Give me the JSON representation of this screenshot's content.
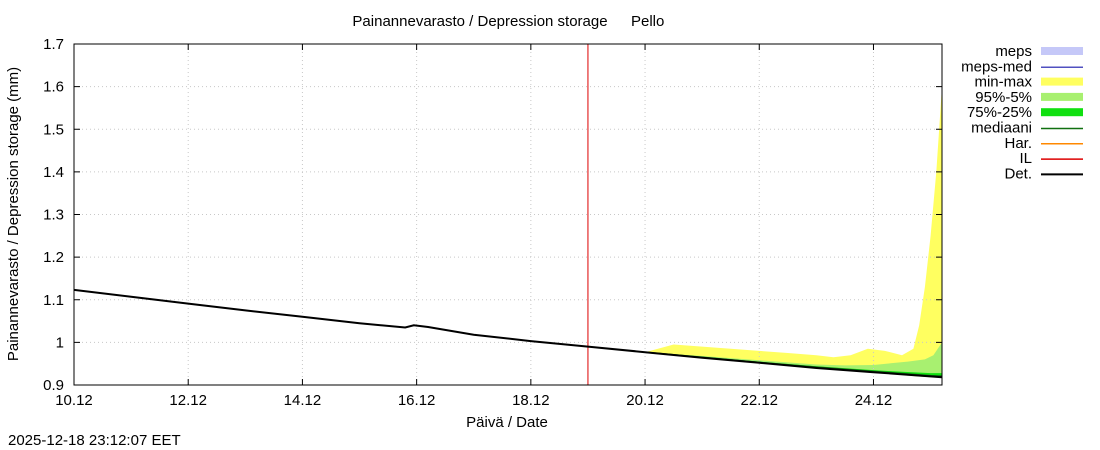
{
  "timestamp": "2025-12-18 23:12:07 EET",
  "chart_data": {
    "type": "line",
    "title": "Painannevarasto / Depression storage",
    "location": "Pello",
    "xlabel": "Päivä / Date",
    "ylabel": "Painannevarasto / Depression storage (mm)",
    "xlim": [
      10,
      25.2
    ],
    "ylim": [
      0.9,
      1.7
    ],
    "x_ticks": [
      {
        "x": 10,
        "label": "10.12"
      },
      {
        "x": 12,
        "label": "12.12"
      },
      {
        "x": 14,
        "label": "14.12"
      },
      {
        "x": 16,
        "label": "16.12"
      },
      {
        "x": 18,
        "label": "18.12"
      },
      {
        "x": 20,
        "label": "20.12"
      },
      {
        "x": 22,
        "label": "22.12"
      },
      {
        "x": 24,
        "label": "24.12"
      }
    ],
    "y_ticks": [
      {
        "y": 0.9,
        "label": "0.9"
      },
      {
        "y": 1.0,
        "label": "1"
      },
      {
        "y": 1.1,
        "label": "1.1"
      },
      {
        "y": 1.2,
        "label": "1.2"
      },
      {
        "y": 1.3,
        "label": "1.3"
      },
      {
        "y": 1.4,
        "label": "1.4"
      },
      {
        "y": 1.5,
        "label": "1.5"
      },
      {
        "y": 1.6,
        "label": "1.6"
      },
      {
        "y": 1.7,
        "label": "1.7"
      }
    ],
    "legend": [
      {
        "label": "meps",
        "color": "#c5c8f8",
        "kind": "band"
      },
      {
        "label": "meps-med",
        "color": "#5050c0",
        "kind": "line"
      },
      {
        "label": "min-max",
        "color": "#ffff60",
        "kind": "band"
      },
      {
        "label": "95%-5%",
        "color": "#a8f070",
        "kind": "band"
      },
      {
        "label": "75%-25%",
        "color": "#10e010",
        "kind": "band"
      },
      {
        "label": "mediaani",
        "color": "#107010",
        "kind": "line"
      },
      {
        "label": "Har.",
        "color": "#ff8800",
        "kind": "line"
      },
      {
        "label": "IL",
        "color": "#dd0000",
        "kind": "line"
      },
      {
        "label": "Det.",
        "color": "#000000",
        "kind": "line"
      }
    ],
    "vertical_marker_x": 19.0,
    "det": {
      "x": [
        10,
        11,
        12,
        13,
        14,
        15,
        15.8,
        15.95,
        16.2,
        17,
        18,
        19,
        20,
        21,
        22,
        23,
        24,
        25.2
      ],
      "y": [
        1.123,
        1.107,
        1.091,
        1.075,
        1.06,
        1.045,
        1.035,
        1.04,
        1.036,
        1.018,
        1.003,
        0.99,
        0.977,
        0.964,
        0.952,
        0.94,
        0.93,
        0.918
      ]
    },
    "min_max": {
      "x": [
        20,
        20.5,
        21,
        21.5,
        22,
        22.5,
        23,
        23.3,
        23.6,
        23.9,
        24.2,
        24.5,
        24.7,
        24.8,
        24.9,
        25,
        25.1,
        25.2
      ],
      "lo": [
        0.977,
        0.971,
        0.965,
        0.958,
        0.952,
        0.946,
        0.94,
        0.936,
        0.933,
        0.931,
        0.928,
        0.924,
        0.921,
        0.92,
        0.919,
        0.918,
        0.918,
        0.918
      ],
      "hi": [
        0.977,
        0.995,
        0.99,
        0.985,
        0.98,
        0.975,
        0.97,
        0.965,
        0.97,
        0.985,
        0.98,
        0.97,
        0.985,
        1.04,
        1.13,
        1.25,
        1.4,
        1.6
      ]
    },
    "p95_5": {
      "x": [
        20,
        21,
        22,
        22.5,
        23,
        23.5,
        24,
        24.3,
        24.6,
        24.9,
        25.05,
        25.2
      ],
      "lo": [
        0.977,
        0.964,
        0.952,
        0.946,
        0.94,
        0.935,
        0.93,
        0.926,
        0.922,
        0.919,
        0.918,
        0.918
      ],
      "hi": [
        0.977,
        0.968,
        0.958,
        0.953,
        0.948,
        0.946,
        0.947,
        0.951,
        0.955,
        0.96,
        0.97,
        1.0
      ]
    },
    "p75_25": {
      "x": [
        20,
        21,
        22,
        23,
        24,
        24.5,
        25,
        25.2
      ],
      "lo": [
        0.977,
        0.964,
        0.952,
        0.94,
        0.93,
        0.924,
        0.919,
        0.918
      ],
      "hi": [
        0.977,
        0.966,
        0.955,
        0.944,
        0.935,
        0.931,
        0.928,
        0.928
      ]
    },
    "median": {
      "x": [
        20,
        21,
        22,
        23,
        24,
        25,
        25.2
      ],
      "y": [
        0.977,
        0.965,
        0.953,
        0.942,
        0.932,
        0.922,
        0.921
      ]
    }
  }
}
